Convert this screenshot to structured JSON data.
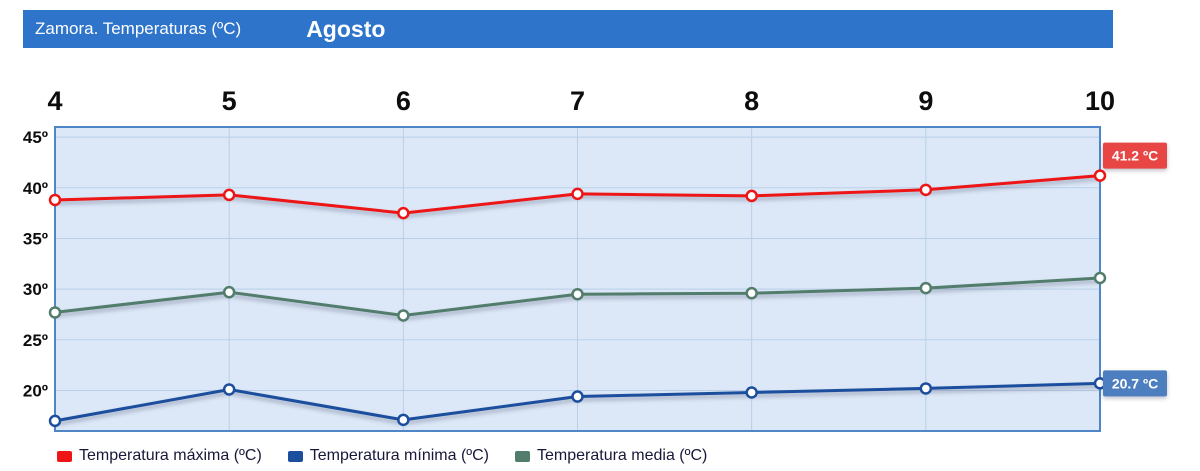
{
  "colors": {
    "header_bg": "#2d74ca",
    "plot_bg": "#dce8f7",
    "grid": "#b9cfe8",
    "border": "#4e86c8",
    "legend_text": "#18183a"
  },
  "chart_data": {
    "type": "line",
    "title": "Zamora. Temperaturas (ºC)",
    "period": "Agosto",
    "x": [
      4,
      5,
      6,
      7,
      8,
      9,
      10
    ],
    "x_tick_labels": [
      "4",
      "5",
      "6",
      "7",
      "8",
      "9",
      "10"
    ],
    "xlabel": "",
    "ylabel": "",
    "ylim": [
      16,
      46
    ],
    "yticks": [
      20,
      25,
      30,
      35,
      40,
      45
    ],
    "ytick_labels": [
      "20º",
      "25º",
      "30º",
      "35º",
      "40º",
      "45º"
    ],
    "grid": true,
    "legend_position": "bottom",
    "series": [
      {
        "name": "Temperatura máxima (ºC)",
        "color": "#ed1515",
        "values": [
          38.8,
          39.3,
          37.5,
          39.4,
          39.2,
          39.8,
          41.2
        ],
        "end_label": "41.2 ºC",
        "end_label_bg": "#e84545"
      },
      {
        "name": "Temperatura mínima (ºC)",
        "color": "#1c4e9e",
        "values": [
          17.0,
          20.1,
          17.1,
          19.4,
          19.8,
          20.2,
          20.7
        ],
        "end_label": "20.7 ºC",
        "end_label_bg": "#4d7fc0"
      },
      {
        "name": "Temperatura media (ºC)",
        "color": "#527c6c",
        "values": [
          27.7,
          29.7,
          27.4,
          29.5,
          29.6,
          30.1,
          31.1
        ]
      }
    ]
  }
}
